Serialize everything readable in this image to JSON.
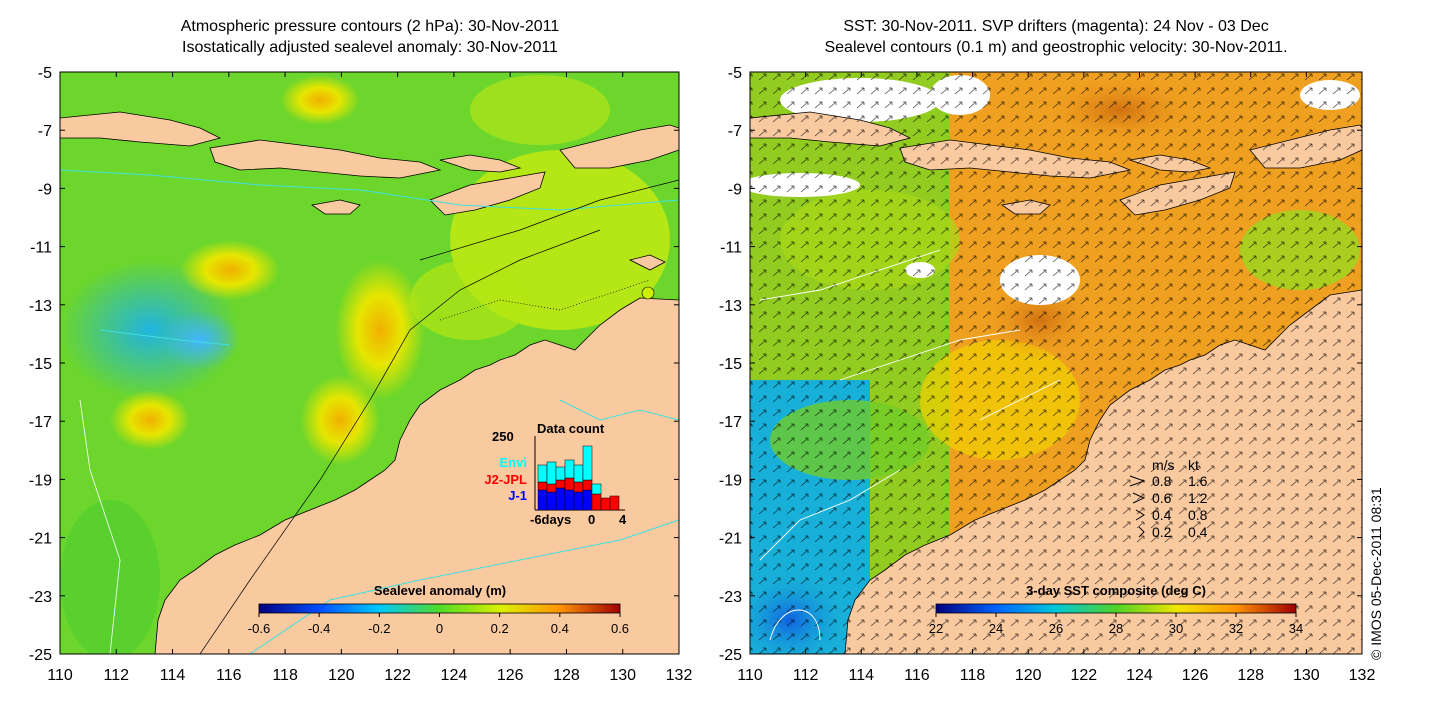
{
  "left_panel": {
    "title_line1": "Atmospheric pressure contours (2 hPa): 30-Nov-2011",
    "title_line2": "Isostatically adjusted sealevel anomaly: 30-Nov-2011",
    "colorbar_label": "Sealevel anomaly (m)",
    "colorbar_ticks": [
      "-0.6",
      "-0.4",
      "-0.2",
      "0",
      "0.2",
      "0.4",
      "0.6"
    ],
    "inset": {
      "title": "Data count",
      "y_max_label": "250",
      "x_ticks": [
        "-6days",
        "0",
        "4"
      ],
      "legend": [
        {
          "name": "Envi",
          "color": "#00ffff"
        },
        {
          "name": "J2-JPL",
          "color": "#ff0000"
        },
        {
          "name": "J-1",
          "color": "#0000ff"
        }
      ]
    }
  },
  "right_panel": {
    "title_line1": "SST: 30-Nov-2011. SVP drifters (magenta): 24 Nov - 03 Dec",
    "title_line2": "Sealevel contours (0.1 m) and geostrophic velocity: 30-Nov-2011.",
    "colorbar_label": "3-day SST composite (deg C)",
    "colorbar_ticks": [
      "22",
      "24",
      "26",
      "28",
      "30",
      "32",
      "34"
    ],
    "speed_legend": {
      "header_ms": "m/s",
      "header_kt": "kt",
      "rows": [
        {
          "ms": "0.8",
          "kt": "1.6"
        },
        {
          "ms": "0.6",
          "kt": "1.2"
        },
        {
          "ms": "0.4",
          "kt": "0.8"
        },
        {
          "ms": "0.2",
          "kt": "0.4"
        }
      ]
    }
  },
  "axes": {
    "lon_ticks": [
      "110",
      "112",
      "114",
      "116",
      "118",
      "120",
      "122",
      "124",
      "126",
      "128",
      "130",
      "132"
    ],
    "lat_ticks": [
      "-5",
      "-7",
      "-9",
      "-11",
      "-13",
      "-15",
      "-17",
      "-19",
      "-21",
      "-23",
      "-25"
    ]
  },
  "copyright": "© IMOS 05-Dec-2011 08:31",
  "colors": {
    "land": "#f9c9a0",
    "sla_mid": "#88e01c",
    "sst_warm": "#f0a020",
    "sst_cool": "#1c9ee0"
  }
}
